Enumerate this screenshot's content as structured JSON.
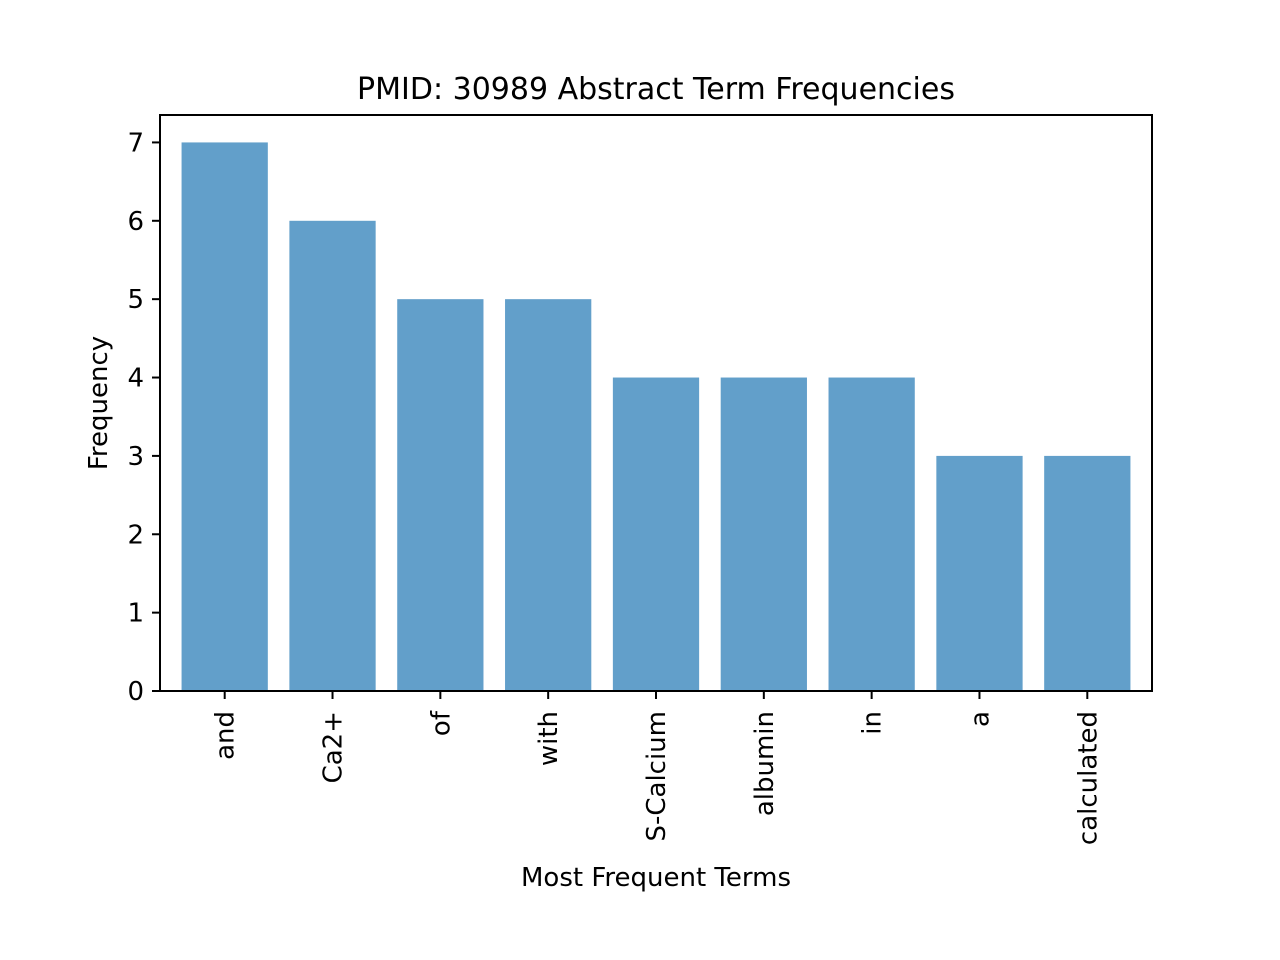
{
  "chart_data": {
    "type": "bar",
    "title": "PMID: 30989 Abstract Term Frequencies",
    "xlabel": "Most Frequent Terms",
    "ylabel": "Frequency",
    "categories": [
      "and",
      "Ca2+",
      "of",
      "with",
      "S-Calcium",
      "albumin",
      "in",
      "a",
      "calculated"
    ],
    "values": [
      7,
      6,
      5,
      5,
      4,
      4,
      4,
      3,
      3
    ],
    "ylim": [
      0,
      7.35
    ],
    "yticks": [
      0,
      1,
      2,
      3,
      4,
      5,
      6,
      7
    ],
    "bar_color": "#629fca",
    "grid": false,
    "legend": "none"
  }
}
